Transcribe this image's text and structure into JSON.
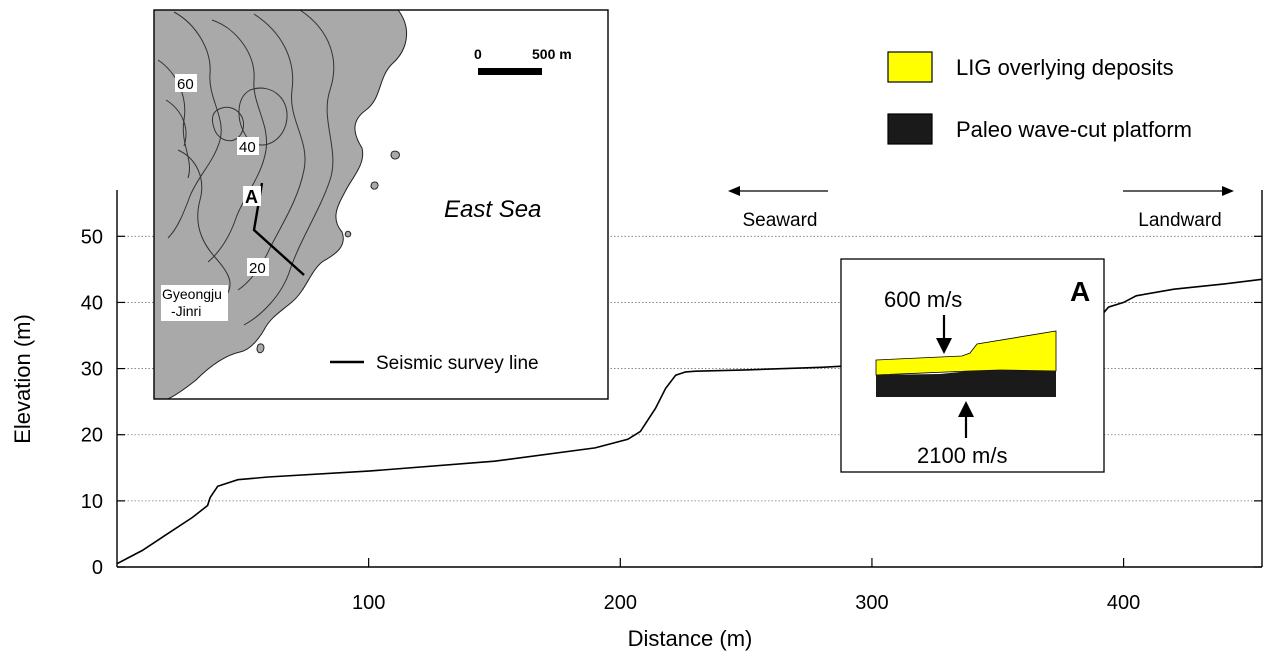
{
  "chart_data": {
    "type": "line",
    "xlabel": "Distance (m)",
    "ylabel": "Elevation (m)",
    "xlim": [
      0,
      455
    ],
    "ylim": [
      0,
      57
    ],
    "x_ticks": [
      100,
      200,
      300,
      400
    ],
    "y_ticks": [
      0,
      10,
      20,
      30,
      40,
      50
    ],
    "grid": "horizontal dotted",
    "series": [
      {
        "x": [
          0,
          10,
          20,
          30,
          36,
          37,
          40,
          48,
          60,
          100,
          150,
          190,
          203,
          208,
          214,
          218,
          222,
          226,
          230,
          250,
          280,
          300,
          330,
          338,
          340,
          350,
          370,
          380,
          386,
          390,
          394,
          400,
          405,
          420,
          440,
          455
        ],
        "y": [
          0.5,
          2.5,
          5,
          7.5,
          9.3,
          10.5,
          12.2,
          13.2,
          13.6,
          14.5,
          16,
          18,
          19.3,
          20.5,
          24,
          27,
          29,
          29.5,
          29.6,
          29.8,
          30.2,
          30.6,
          31.2,
          31.9,
          32.7,
          33.5,
          34.5,
          35.5,
          36.3,
          37.5,
          39.3,
          40,
          41,
          42,
          42.8,
          43.5
        ]
      }
    ]
  },
  "legend": {
    "items": [
      {
        "label": "LIG overlying deposits",
        "color": "#ffff00"
      },
      {
        "label": "Paleo wave-cut platform",
        "color": "#1a1a1a"
      }
    ]
  },
  "annotations": {
    "seaward": "Seaward",
    "landward": "Landward"
  },
  "inset_profile": {
    "label": "A",
    "velocity_top": "600 m/s",
    "velocity_bottom": "2100 m/s",
    "deposit_color": "#ffff00",
    "platform_color": "#1a1a1a"
  },
  "inset_map": {
    "scale_zero": "0",
    "scale_end": "500 m",
    "contour_labels": [
      "60",
      "40",
      "20"
    ],
    "sea_label": "East Sea",
    "point_label": "A",
    "place_label_line1": "Gyeongju",
    "place_label_line2": "-Jinri",
    "line_legend": "Seismic survey line",
    "land_color": "#a9a9a9"
  }
}
